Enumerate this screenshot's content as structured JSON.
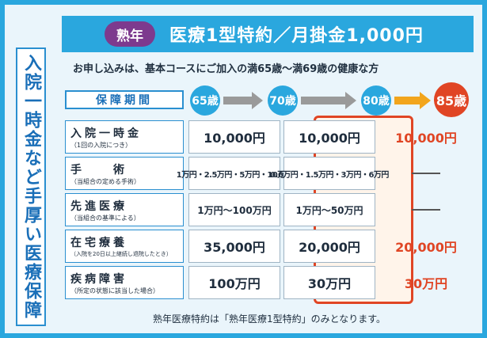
{
  "side_title": "入院一時金など手厚い医療保障",
  "banner": {
    "badge": "熟年",
    "title": "医療1型特約／月掛金1,000円"
  },
  "subtitle": "お申し込みは、基本コースにご加入の満65歳～満69歳の健康な方",
  "period": {
    "label": "保障期間",
    "ages": [
      "65歳",
      "70歳",
      "80歳",
      "85歳"
    ]
  },
  "colors": {
    "blue": "#2aa7de",
    "purple_badge": "#7d3a8e",
    "red": "#e04524",
    "orange_arrow": "#f2a51c",
    "gray_arrow": "#9a9a9a"
  },
  "rows": [
    {
      "label": "入院一時金",
      "note": "（1回の入院につき）",
      "values": [
        "10,000円",
        "10,000円",
        "10,000円"
      ]
    },
    {
      "label": "手　　術",
      "note": "（当組合の定める手術）",
      "values": [
        "1万円・2.5万円・5万円・10万円",
        "0.6万円・1.5万円・3万円・6万円",
        ""
      ]
    },
    {
      "label": "先進医療",
      "note": "（当組合の基準による）",
      "values": [
        "1万円～100万円",
        "1万円～50万円",
        ""
      ]
    },
    {
      "label": "在宅療養",
      "note": "（入院を20日以上継続し退院したとき）",
      "values": [
        "35,000円",
        "20,000円",
        "20,000円"
      ]
    },
    {
      "label": "疾病障害",
      "note": "（所定の状態に該当した場合）",
      "values": [
        "100万円",
        "30万円",
        "30万円"
      ]
    }
  ],
  "footnote": "熟年医療特約は「熟年医療1型特約」のみとなります。"
}
